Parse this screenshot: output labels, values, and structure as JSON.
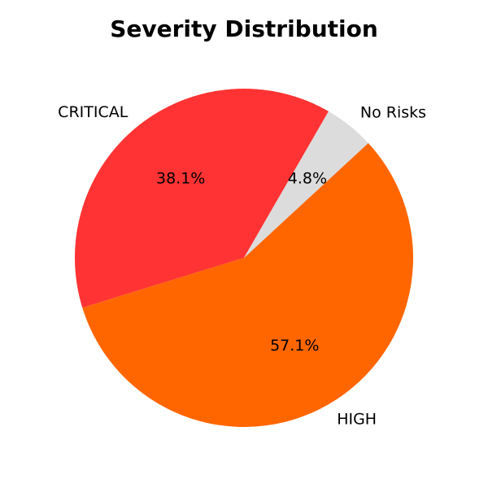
{
  "chart_data": {
    "type": "pie",
    "title": "Severity Distribution",
    "categories": [
      "CRITICAL",
      "HIGH",
      "No Risks"
    ],
    "values": [
      38.1,
      57.1,
      4.8
    ],
    "labels": [
      "38.1%",
      "57.1%",
      "4.8%"
    ],
    "colors": [
      "#ff3333",
      "#ff6600",
      "#dcdcdc"
    ],
    "start_angle": 60,
    "direction": "counterclockwise"
  }
}
